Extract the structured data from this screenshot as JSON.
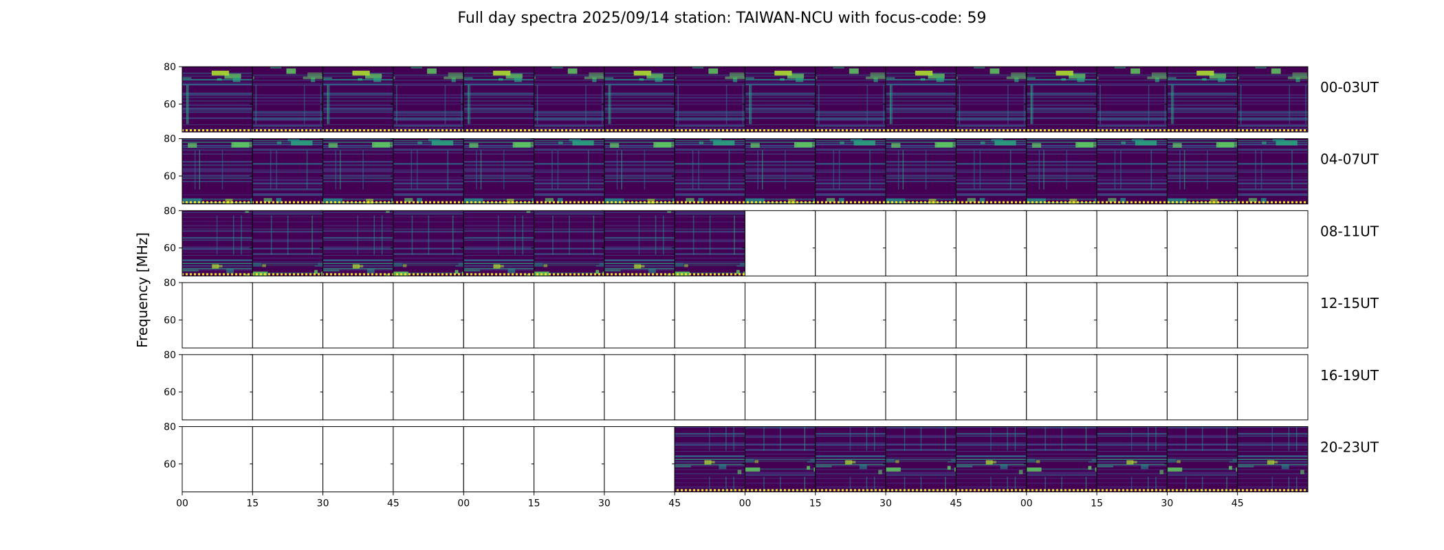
{
  "chart_data": {
    "type": "heatmap",
    "title": "Full day spectra 2025/09/14 station: TAIWAN-NCU with focus-code: 59",
    "ylabel": "Frequency [MHz]",
    "xlabel": "",
    "ylim": [
      45,
      80
    ],
    "y_ticks": [
      "80",
      "60"
    ],
    "x_tick_labels": [
      "00",
      "15",
      "30",
      "45",
      "00",
      "15",
      "30",
      "45",
      "00",
      "15",
      "30",
      "45",
      "00",
      "15",
      "30",
      "45"
    ],
    "panels_per_row": 16,
    "minutes_per_panel": 15,
    "rows": [
      {
        "label": "00-03UT",
        "filled": [
          true,
          true,
          true,
          true,
          true,
          true,
          true,
          true,
          true,
          true,
          true,
          true,
          true,
          true,
          true,
          true
        ]
      },
      {
        "label": "04-07UT",
        "filled": [
          true,
          true,
          true,
          true,
          true,
          true,
          true,
          true,
          true,
          true,
          true,
          true,
          true,
          true,
          true,
          true
        ]
      },
      {
        "label": "08-11UT",
        "filled": [
          true,
          true,
          true,
          true,
          true,
          true,
          true,
          true,
          false,
          false,
          false,
          false,
          false,
          false,
          false,
          false
        ]
      },
      {
        "label": "12-15UT",
        "filled": [
          false,
          false,
          false,
          false,
          false,
          false,
          false,
          false,
          false,
          false,
          false,
          false,
          false,
          false,
          false,
          false
        ]
      },
      {
        "label": "16-19UT",
        "filled": [
          false,
          false,
          false,
          false,
          false,
          false,
          false,
          false,
          false,
          false,
          false,
          false,
          false,
          false,
          false,
          false
        ]
      },
      {
        "label": "20-23UT",
        "filled": [
          false,
          false,
          false,
          false,
          false,
          false,
          false,
          true,
          true,
          true,
          true,
          true,
          true,
          true,
          true,
          true
        ]
      }
    ],
    "colormap": [
      "#440154",
      "#472d7b",
      "#3b528b",
      "#2c728e",
      "#21918c",
      "#28ae80",
      "#5ec962",
      "#addc30",
      "#fde725"
    ],
    "baseline_marker_color": "#fde725"
  }
}
